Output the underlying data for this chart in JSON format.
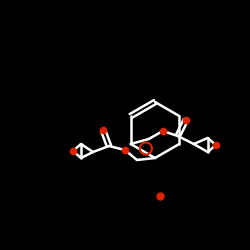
{
  "bg_color": "#000000",
  "bond_color": "#ffffff",
  "oxygen_color": "#dd2200",
  "line_width": 1.8,
  "fig_width": 2.5,
  "fig_height": 2.5,
  "dpi": 100
}
